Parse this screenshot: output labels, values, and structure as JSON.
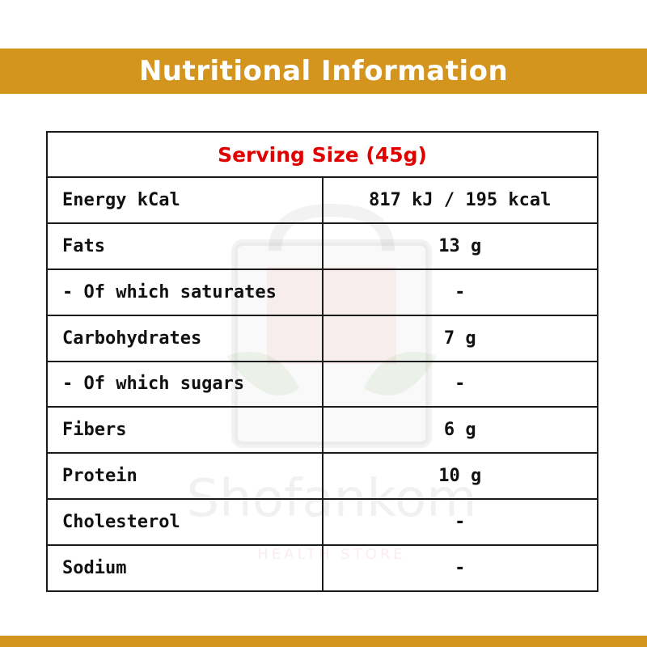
{
  "colors": {
    "accent": "#d4951f",
    "serving_text": "#e00000",
    "border": "#1a1a1a"
  },
  "header": {
    "title": "Nutritional Information"
  },
  "table": {
    "serving_size": "Serving Size (45g)",
    "rows": [
      {
        "label": "Energy kCal",
        "value": "817 kJ / 195 kcal"
      },
      {
        "label": "Fats",
        "value": "13 g"
      },
      {
        "label": "- Of which saturates",
        "value": "-"
      },
      {
        "label": "Carbohydrates",
        "value": "7 g"
      },
      {
        "label": "- Of which sugars",
        "value": "-"
      },
      {
        "label": "Fibers",
        "value": "6 g"
      },
      {
        "label": "Protein",
        "value": "10 g"
      },
      {
        "label": "Cholesterol",
        "value": "-"
      },
      {
        "label": "Sodium",
        "value": "-"
      }
    ]
  },
  "watermark": {
    "brand": "Shofankom",
    "tagline": "HEALTH STORE"
  }
}
